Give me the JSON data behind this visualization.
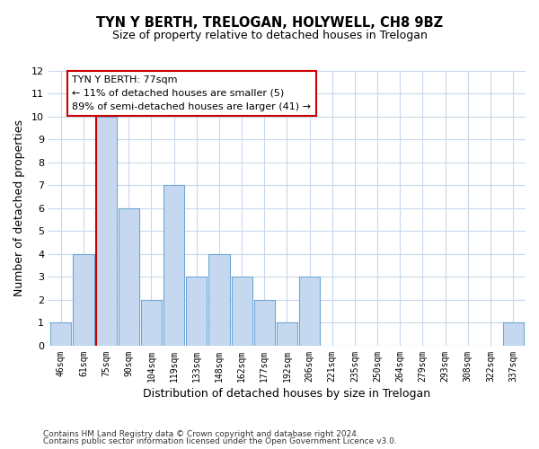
{
  "title": "TYN Y BERTH, TRELOGAN, HOLYWELL, CH8 9BZ",
  "subtitle": "Size of property relative to detached houses in Trelogan",
  "xlabel": "Distribution of detached houses by size in Trelogan",
  "ylabel": "Number of detached properties",
  "bin_labels": [
    "46sqm",
    "61sqm",
    "75sqm",
    "90sqm",
    "104sqm",
    "119sqm",
    "133sqm",
    "148sqm",
    "162sqm",
    "177sqm",
    "192sqm",
    "206sqm",
    "221sqm",
    "235sqm",
    "250sqm",
    "264sqm",
    "279sqm",
    "293sqm",
    "308sqm",
    "322sqm",
    "337sqm"
  ],
  "bar_heights": [
    1,
    4,
    10,
    6,
    2,
    7,
    3,
    4,
    3,
    2,
    1,
    3,
    0,
    0,
    0,
    0,
    0,
    0,
    0,
    0,
    1
  ],
  "bar_color": "#c5d8f0",
  "bar_edge_color": "#6fa8d6",
  "highlight_line_color": "#cc0000",
  "highlight_bar_index": 2,
  "ylim": [
    0,
    12
  ],
  "yticks": [
    0,
    1,
    2,
    3,
    4,
    5,
    6,
    7,
    8,
    9,
    10,
    11,
    12
  ],
  "annotation_title": "TYN Y BERTH: 77sqm",
  "annotation_line1": "← 11% of detached houses are smaller (5)",
  "annotation_line2": "89% of semi-detached houses are larger (41) →",
  "annotation_box_color": "#ffffff",
  "annotation_box_edge": "#cc0000",
  "footer1": "Contains HM Land Registry data © Crown copyright and database right 2024.",
  "footer2": "Contains public sector information licensed under the Open Government Licence v3.0.",
  "background_color": "#ffffff",
  "grid_color": "#c8d8ec"
}
